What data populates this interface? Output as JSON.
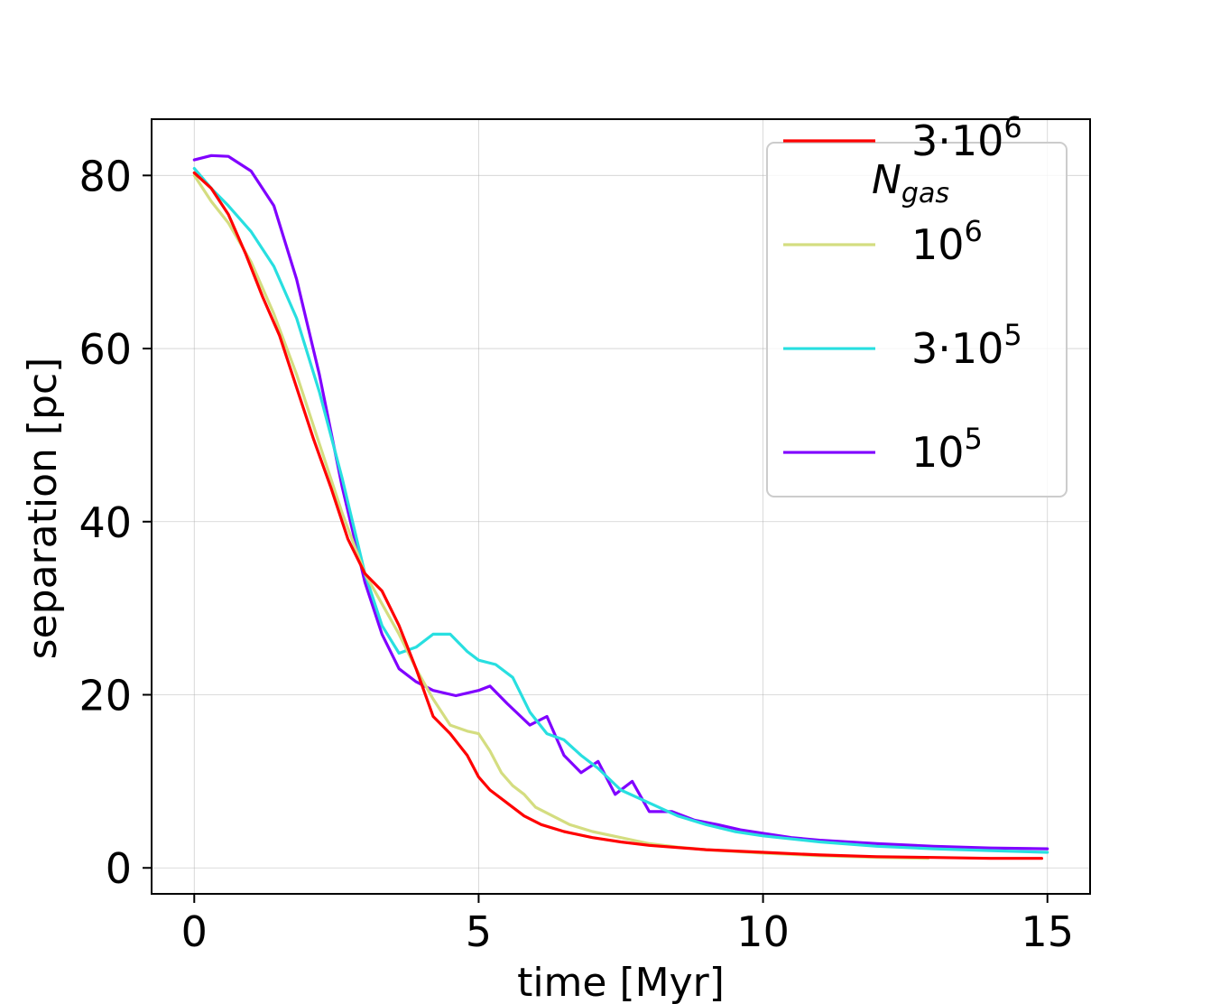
{
  "chart_data": {
    "type": "line",
    "title": "",
    "xlabel": "time   [Myr]",
    "ylabel": "separation   [pc]",
    "xlim": [
      -0.75,
      15.75
    ],
    "ylim": [
      -3,
      86.5
    ],
    "xticks": [
      0,
      5,
      10,
      15
    ],
    "yticks": [
      0,
      20,
      40,
      60,
      80
    ],
    "xtick_labels": [
      "0",
      "5",
      "10",
      "15"
    ],
    "ytick_labels": [
      "0",
      "20",
      "40",
      "60",
      "80"
    ],
    "grid": true,
    "legend": {
      "placement": "top-right",
      "title_main": "N",
      "title_sub": "gas"
    },
    "series": [
      {
        "name": "10^5",
        "label_base": "10",
        "label_exp": "5",
        "color": "#8000ff",
        "x": [
          0,
          0.3,
          0.6,
          1.0,
          1.4,
          1.8,
          2.2,
          2.6,
          3.0,
          3.3,
          3.6,
          3.9,
          4.2,
          4.6,
          5.0,
          5.2,
          5.5,
          5.9,
          6.2,
          6.5,
          6.8,
          7.1,
          7.4,
          7.7,
          8.0,
          8.4,
          8.8,
          9.2,
          9.6,
          10.0,
          10.5,
          11.0,
          11.5,
          12.0,
          13.0,
          14.0,
          15.0
        ],
        "y": [
          81.8,
          82.3,
          82.2,
          80.5,
          76.5,
          68,
          57,
          44,
          33,
          27,
          23,
          21.5,
          20.5,
          19.9,
          20.5,
          21,
          19,
          16.5,
          17.5,
          13,
          11,
          12.3,
          8.5,
          10,
          6.5,
          6.5,
          5.5,
          5,
          4.4,
          4,
          3.5,
          3.2,
          3.0,
          2.8,
          2.5,
          2.3,
          2.2
        ],
        "legend_y": 48
      },
      {
        "name": "3·10^5",
        "label_base": "3·10",
        "label_exp": "5",
        "color": "#28dfe0",
        "x": [
          0,
          0.3,
          0.6,
          1.0,
          1.4,
          1.8,
          2.2,
          2.6,
          3.0,
          3.3,
          3.6,
          3.9,
          4.2,
          4.5,
          4.8,
          5.0,
          5.3,
          5.6,
          5.9,
          6.2,
          6.5,
          6.8,
          7.1,
          7.5,
          8.0,
          8.5,
          9.0,
          9.5,
          10.0,
          11.0,
          12.0,
          13.0,
          14.0,
          15.0
        ],
        "y": [
          80.8,
          78.5,
          76.5,
          73.5,
          69.5,
          63.5,
          55,
          45,
          34,
          28,
          24.8,
          25.5,
          27,
          27,
          25,
          24,
          23.5,
          22,
          18,
          15.5,
          14.8,
          13,
          11.5,
          9,
          7.5,
          6,
          5,
          4.2,
          3.7,
          3.0,
          2.5,
          2.2,
          2.0,
          1.8
        ],
        "legend_y": 60
      },
      {
        "name": "10^6",
        "label_base": "10",
        "label_exp": "6",
        "color": "#d4dd80",
        "x": [
          0,
          0.3,
          0.6,
          1.0,
          1.4,
          1.8,
          2.2,
          2.6,
          3.0,
          3.3,
          3.6,
          3.9,
          4.2,
          4.5,
          4.8,
          5.0,
          5.2,
          5.4,
          5.6,
          5.8,
          6.0,
          6.3,
          6.6,
          7.0,
          7.5,
          8.0,
          8.5,
          9.0,
          10.0,
          11.0,
          12.0,
          12.9
        ],
        "y": [
          80,
          77,
          74.5,
          70,
          64,
          57,
          49,
          41,
          34,
          30.5,
          27,
          23,
          19.5,
          16.5,
          15.8,
          15.5,
          13.5,
          11,
          9.5,
          8.5,
          7,
          6,
          5,
          4.2,
          3.5,
          2.8,
          2.4,
          2.1,
          1.7,
          1.4,
          1.2,
          1.1
        ],
        "legend_y": 72
      },
      {
        "name": "3·10^6",
        "label_base": "3·10",
        "label_exp": "6",
        "color": "#ff0000",
        "x": [
          0,
          0.3,
          0.6,
          0.9,
          1.2,
          1.5,
          1.8,
          2.1,
          2.4,
          2.7,
          3.0,
          3.3,
          3.6,
          3.9,
          4.2,
          4.5,
          4.8,
          5.0,
          5.2,
          5.5,
          5.8,
          6.1,
          6.5,
          7.0,
          7.5,
          8.0,
          9.0,
          10.0,
          11.0,
          12.0,
          13.0,
          14.0,
          14.9
        ],
        "y": [
          80.3,
          78.5,
          75.5,
          71,
          66,
          61.5,
          55.5,
          49.5,
          44,
          38,
          34,
          32,
          28,
          23,
          17.5,
          15.5,
          13,
          10.5,
          9,
          7.5,
          6,
          5,
          4.2,
          3.5,
          3,
          2.6,
          2.1,
          1.8,
          1.5,
          1.3,
          1.2,
          1.1,
          1.1
        ],
        "legend_y": 84
      }
    ]
  }
}
